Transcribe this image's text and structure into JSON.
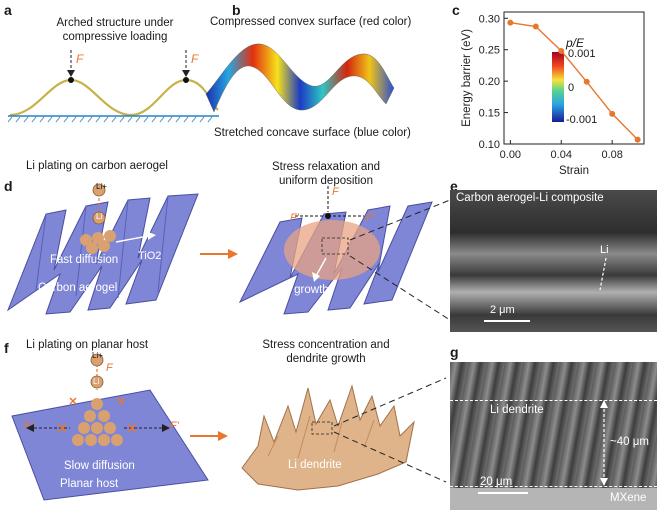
{
  "labels": {
    "a": "a",
    "b": "b",
    "c": "c",
    "d": "d",
    "e": "e",
    "f": "f",
    "g": "g"
  },
  "panel_a": {
    "title_line1": "Arched structure under",
    "title_line2": "compressive loading",
    "force": "F"
  },
  "panel_b": {
    "top": "Compressed convex surface (red color)",
    "bottom": "Stretched concave surface (blue color)",
    "colorbar_title": "p/E",
    "ticks": [
      "0.001",
      "0",
      "-0.001"
    ]
  },
  "panel_d": {
    "left_title": "Li plating on carbon aerogel",
    "right_title_line1": "Stress relaxation and",
    "right_title_line2": "uniform deposition",
    "li": "Li",
    "li_plus": "Li+",
    "fast": "Fast diffusion",
    "tio2": "TiO2",
    "aerogel": "Carbon aerogel",
    "force": "F",
    "fprime": "F'",
    "growth": "Li growth"
  },
  "panel_e": {
    "title": "Carbon aerogel-Li composite",
    "li": "Li",
    "scale": "2 μm"
  },
  "panel_f": {
    "left_title": "Li plating on planar host",
    "right_title_line1": "Stress concentration and",
    "right_title_line2": "dendrite growth",
    "li": "Li",
    "li_plus": "Li+",
    "force": "F",
    "fprime": "F'",
    "slow": "Slow diffusion",
    "host": "Planar host",
    "dendrite": "Li dendrite"
  },
  "panel_g": {
    "dendrite": "Li dendrite",
    "thickness": "~40 μm",
    "scale": "20 μm",
    "mxene": "MXene"
  },
  "colors": {
    "orange": "#e8772e",
    "olive": "#c7b24a",
    "blue_surface": "#7f86d6",
    "li_ball": "#d9a070"
  },
  "chart_data": {
    "type": "line",
    "xlabel": "Strain",
    "ylabel": "Energy barrier (eV)",
    "xlim": [
      -0.005,
      0.105
    ],
    "ylim": [
      0.1,
      0.31
    ],
    "xticks": [
      "0.00",
      "0.04",
      "0.08"
    ],
    "yticks": [
      "0.10",
      "0.15",
      "0.20",
      "0.25",
      "0.30"
    ],
    "series": [
      {
        "x": [
          0.0,
          0.02,
          0.04,
          0.06,
          0.08,
          0.1
        ],
        "y": [
          0.293,
          0.287,
          0.248,
          0.199,
          0.148,
          0.107
        ]
      }
    ],
    "grid": false
  }
}
